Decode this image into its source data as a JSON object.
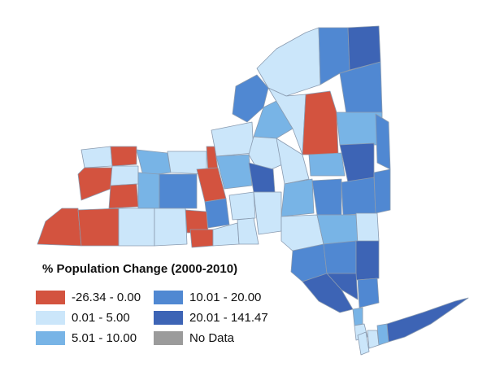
{
  "legend": {
    "title": "% Population Change (2000-2010)",
    "items": [
      {
        "label": "-26.34 - 0.00",
        "color": "#d3533f"
      },
      {
        "label": "0.01 - 5.00",
        "color": "#cbe6fa"
      },
      {
        "label": "5.01 - 10.00",
        "color": "#78b4e6"
      },
      {
        "label": "10.01 - 20.00",
        "color": "#5088d2"
      },
      {
        "label": "20.01 - 141.47",
        "color": "#3d64b5"
      },
      {
        "label": "No Data",
        "color": "#9b9b9b"
      }
    ]
  }
}
